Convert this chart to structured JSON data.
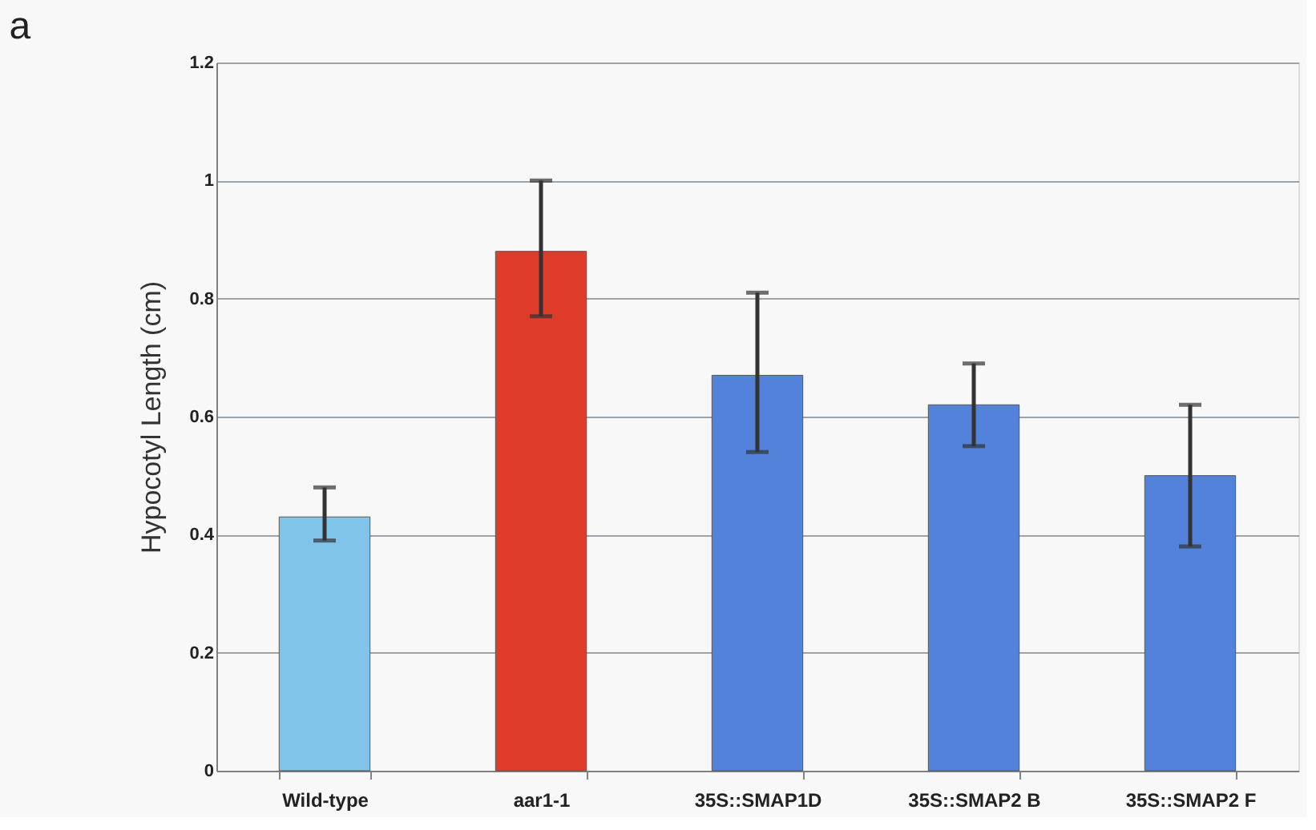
{
  "chart_data": {
    "type": "bar",
    "title": "a",
    "ylabel": "Hypocotyl Length (cm)",
    "categories": [
      "Wild-type",
      "aar1-1",
      "35S::SMAP1D",
      "35S::SMAP2 B",
      "35S::SMAP2 F"
    ],
    "values": [
      0.43,
      0.88,
      0.67,
      0.62,
      0.5
    ],
    "colors": [
      "#80c4ea",
      "#e03c2c",
      "#5282da",
      "#5282da",
      "#5282da"
    ],
    "errors": [
      [
        0.39,
        0.48
      ],
      [
        0.77,
        1.0
      ],
      [
        0.54,
        0.81
      ],
      [
        0.55,
        0.69
      ],
      [
        0.38,
        0.62
      ]
    ],
    "ylim": [
      0,
      1.2
    ],
    "yticks": [
      0,
      0.2,
      0.4,
      0.6,
      0.8,
      1,
      1.2
    ],
    "grid": "y"
  }
}
